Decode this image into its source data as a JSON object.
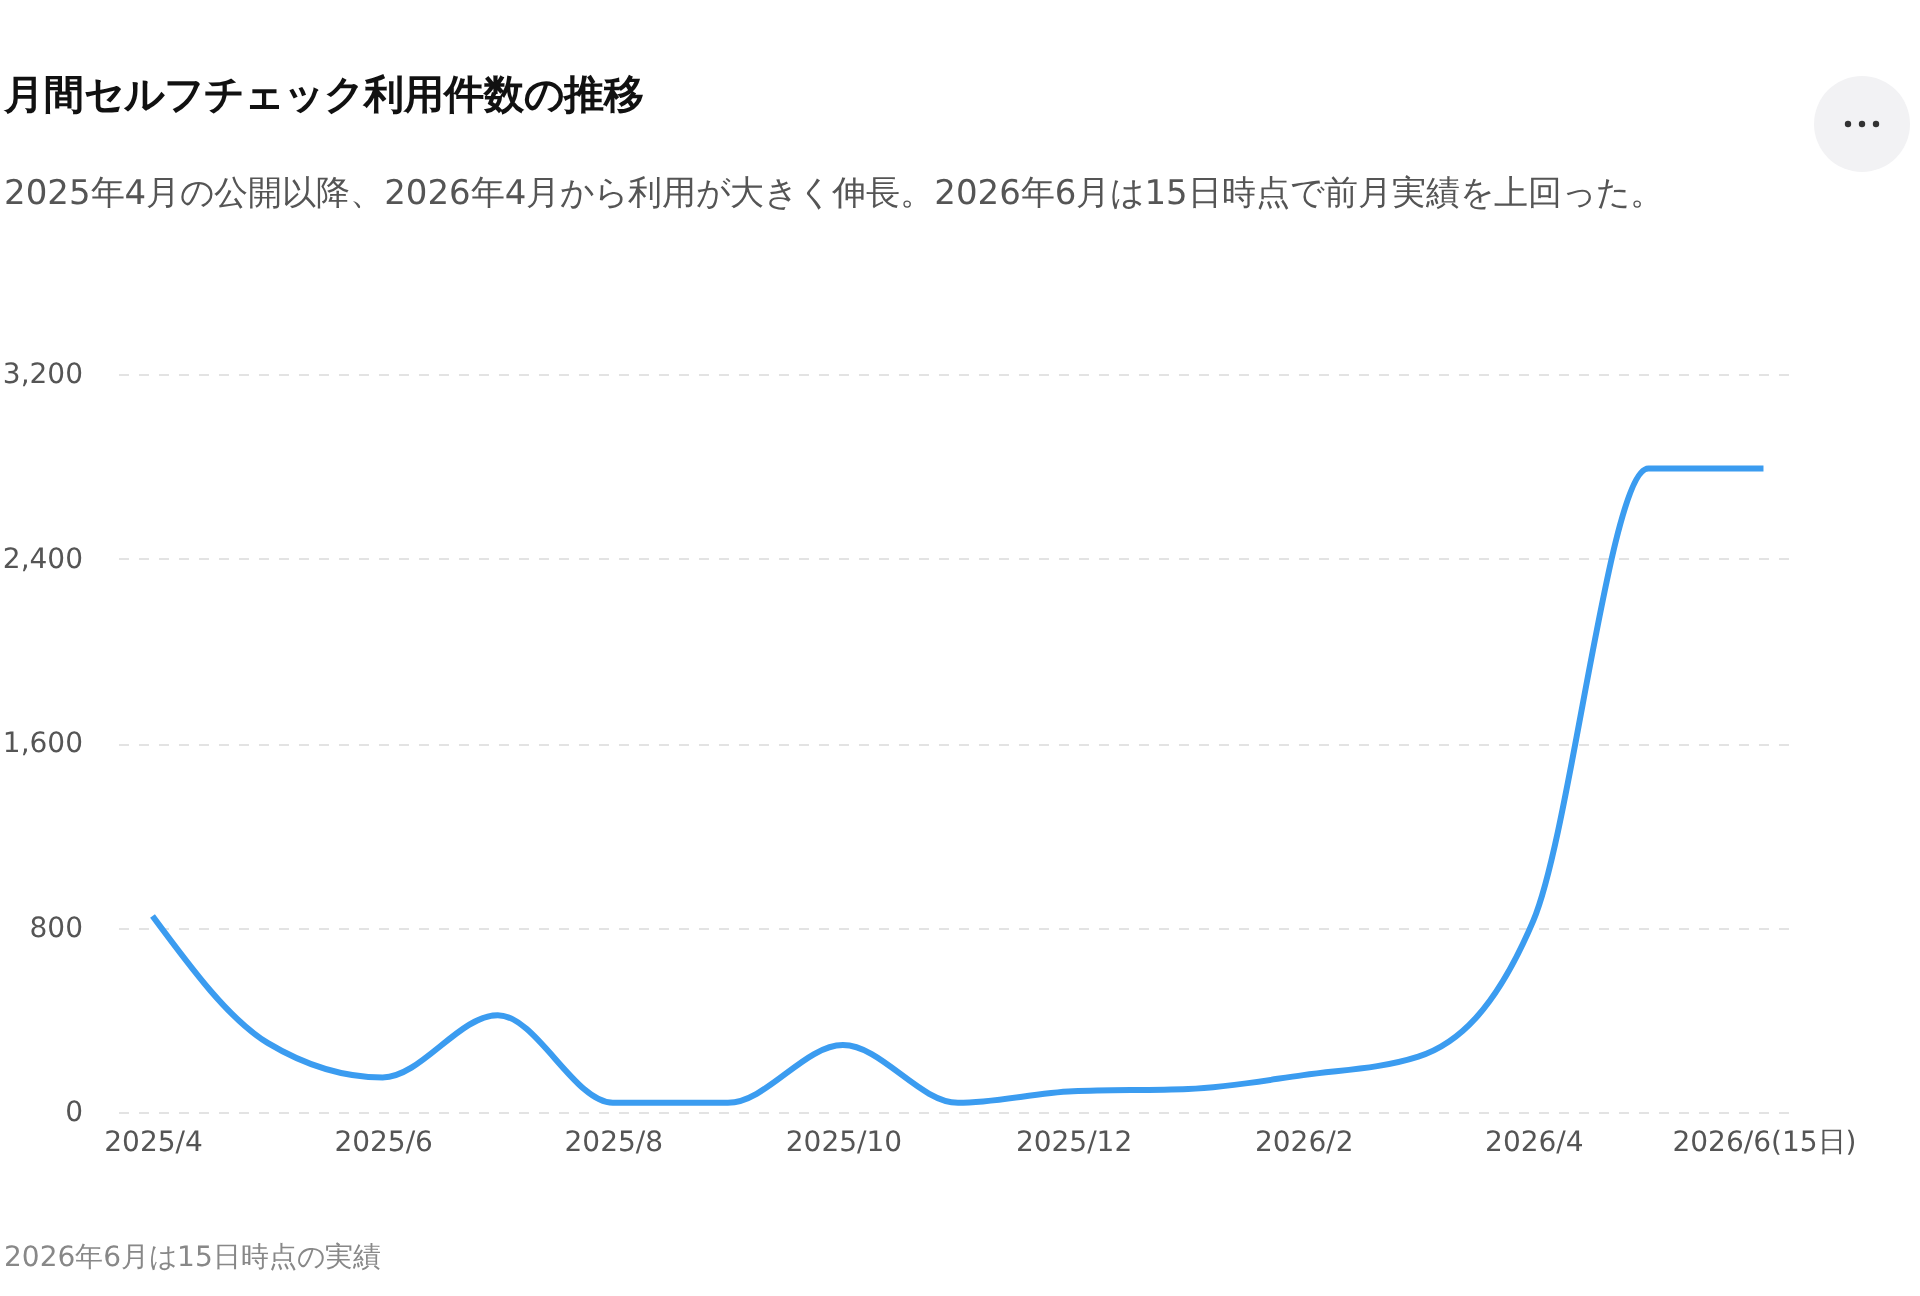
{
  "chart_data": {
    "type": "line",
    "title": "月間セルフチェック利用件数の推移",
    "subtitle": "2025年4月の公開以降、2026年4月から利用が大きく伸長。2026年6月は15日時点で前月実績を上回った。",
    "categories": [
      "2025/4",
      null,
      "2025/6",
      null,
      "2025/8",
      null,
      "2025/10",
      null,
      "2025/12",
      null,
      "2026/2",
      null,
      "2026/4",
      null,
      "2026/6(15日)"
    ],
    "series": [
      {
        "color": "#3b9cf0",
        "values": [
          850,
          300,
          150,
          420,
          40,
          40,
          290,
          40,
          90,
          100,
          160,
          240,
          830,
          2790,
          2790
        ]
      }
    ],
    "ylim": [
      0,
      3200
    ],
    "yticks": [
      0,
      800,
      {
        "value": 1600,
        "label": "1,600"
      },
      {
        "value": 2400,
        "label": "2,400"
      },
      {
        "value": 3200,
        "label": "3,200"
      }
    ],
    "grid": "y",
    "legend": false,
    "marker": "none",
    "line_style": "solid",
    "annotations": [
      "2026年6月は15日時点の実績"
    ]
  }
}
